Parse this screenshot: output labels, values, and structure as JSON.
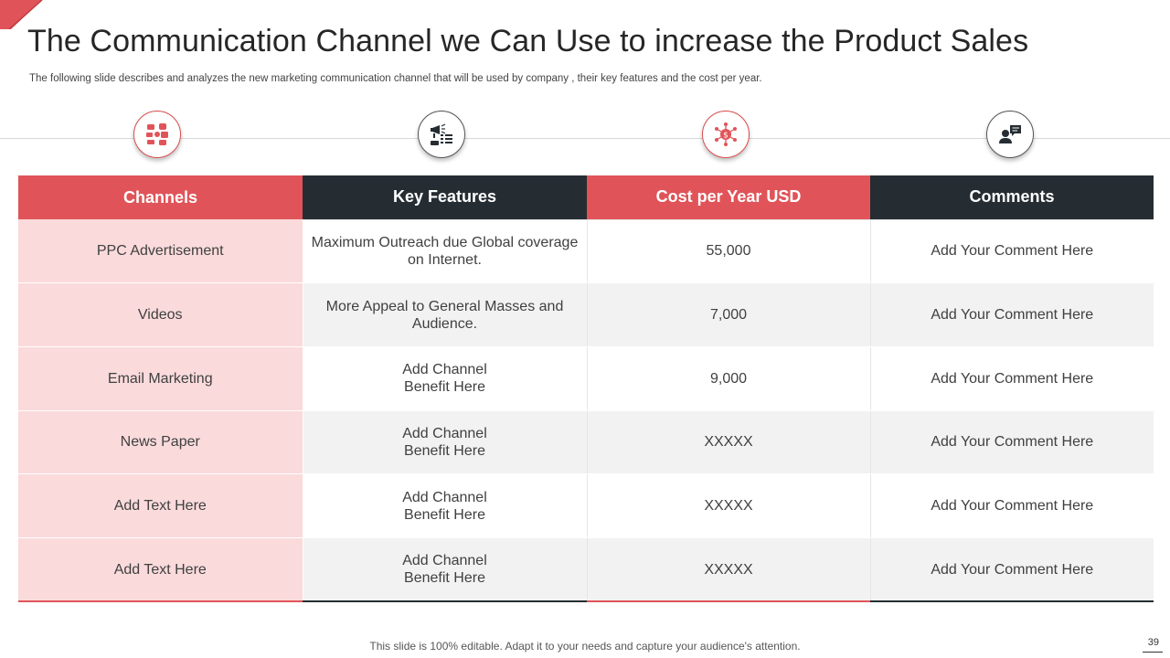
{
  "page": {
    "title": "The Communication Channel we Can Use to increase the Product Sales",
    "subtitle": "The following slide describes and analyzes the new  marketing communication channel that will be used by company , their key features and the cost per year.",
    "footer": "This slide is 100% editable. Adapt it to your needs and capture your audience's attention.",
    "page_number": "39"
  },
  "icons": [
    "social-media-icon",
    "megaphone-checklist-icon",
    "money-network-icon",
    "user-chat-icon"
  ],
  "colors": {
    "accent_red": "#e05459",
    "dark_header": "#252d33",
    "pink_cell": "#fadadb",
    "stripe_gray": "#f2f2f2"
  },
  "table": {
    "headers": [
      "Channels",
      "Key Features",
      "Cost  per Year USD",
      "Comments"
    ],
    "rows": [
      {
        "channel": "PPC Advertisement",
        "feature": "Maximum Outreach  due Global coverage\non Internet.",
        "cost": "55,000",
        "comment": "Add Your Comment Here"
      },
      {
        "channel": "Videos",
        "feature": "More Appeal to General Masses and\nAudience.",
        "cost": "7,000",
        "comment": "Add Your Comment Here"
      },
      {
        "channel": "Email Marketing",
        "feature": "Add Channel\nBenefit Here",
        "cost": "9,000",
        "comment": "Add Your Comment Here"
      },
      {
        "channel": "News Paper",
        "feature": "Add Channel\nBenefit Here",
        "cost": "XXXXX",
        "comment": "Add Your Comment Here"
      },
      {
        "channel": "Add Text Here",
        "feature": "Add Channel\nBenefit Here",
        "cost": "XXXXX",
        "comment": "Add Your Comment Here"
      },
      {
        "channel": "Add Text Here",
        "feature": "Add Channel\nBenefit Here",
        "cost": "XXXXX",
        "comment": "Add Your Comment Here"
      }
    ]
  }
}
